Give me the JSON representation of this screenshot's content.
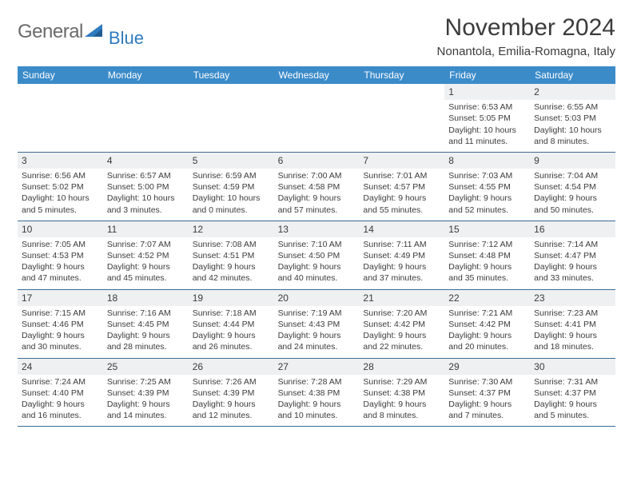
{
  "logo": {
    "text_general": "General",
    "text_blue": "Blue"
  },
  "header": {
    "month_title": "November 2024",
    "location": "Nonantola, Emilia-Romagna, Italy"
  },
  "day_names": [
    "Sunday",
    "Monday",
    "Tuesday",
    "Wednesday",
    "Thursday",
    "Friday",
    "Saturday"
  ],
  "colors": {
    "header_bar": "#3b8bc9",
    "week_border": "#3b6b95",
    "daynum_bg": "#eef0f1",
    "text": "#3b3b3b",
    "logo_gray": "#6a6a6a",
    "logo_blue": "#2f7bbf"
  },
  "weeks": [
    [
      {
        "empty": true
      },
      {
        "empty": true
      },
      {
        "empty": true
      },
      {
        "empty": true
      },
      {
        "empty": true
      },
      {
        "day": "1",
        "sunrise": "Sunrise: 6:53 AM",
        "sunset": "Sunset: 5:05 PM",
        "daylight1": "Daylight: 10 hours",
        "daylight2": "and 11 minutes."
      },
      {
        "day": "2",
        "sunrise": "Sunrise: 6:55 AM",
        "sunset": "Sunset: 5:03 PM",
        "daylight1": "Daylight: 10 hours",
        "daylight2": "and 8 minutes."
      }
    ],
    [
      {
        "day": "3",
        "sunrise": "Sunrise: 6:56 AM",
        "sunset": "Sunset: 5:02 PM",
        "daylight1": "Daylight: 10 hours",
        "daylight2": "and 5 minutes."
      },
      {
        "day": "4",
        "sunrise": "Sunrise: 6:57 AM",
        "sunset": "Sunset: 5:00 PM",
        "daylight1": "Daylight: 10 hours",
        "daylight2": "and 3 minutes."
      },
      {
        "day": "5",
        "sunrise": "Sunrise: 6:59 AM",
        "sunset": "Sunset: 4:59 PM",
        "daylight1": "Daylight: 10 hours",
        "daylight2": "and 0 minutes."
      },
      {
        "day": "6",
        "sunrise": "Sunrise: 7:00 AM",
        "sunset": "Sunset: 4:58 PM",
        "daylight1": "Daylight: 9 hours",
        "daylight2": "and 57 minutes."
      },
      {
        "day": "7",
        "sunrise": "Sunrise: 7:01 AM",
        "sunset": "Sunset: 4:57 PM",
        "daylight1": "Daylight: 9 hours",
        "daylight2": "and 55 minutes."
      },
      {
        "day": "8",
        "sunrise": "Sunrise: 7:03 AM",
        "sunset": "Sunset: 4:55 PM",
        "daylight1": "Daylight: 9 hours",
        "daylight2": "and 52 minutes."
      },
      {
        "day": "9",
        "sunrise": "Sunrise: 7:04 AM",
        "sunset": "Sunset: 4:54 PM",
        "daylight1": "Daylight: 9 hours",
        "daylight2": "and 50 minutes."
      }
    ],
    [
      {
        "day": "10",
        "sunrise": "Sunrise: 7:05 AM",
        "sunset": "Sunset: 4:53 PM",
        "daylight1": "Daylight: 9 hours",
        "daylight2": "and 47 minutes."
      },
      {
        "day": "11",
        "sunrise": "Sunrise: 7:07 AM",
        "sunset": "Sunset: 4:52 PM",
        "daylight1": "Daylight: 9 hours",
        "daylight2": "and 45 minutes."
      },
      {
        "day": "12",
        "sunrise": "Sunrise: 7:08 AM",
        "sunset": "Sunset: 4:51 PM",
        "daylight1": "Daylight: 9 hours",
        "daylight2": "and 42 minutes."
      },
      {
        "day": "13",
        "sunrise": "Sunrise: 7:10 AM",
        "sunset": "Sunset: 4:50 PM",
        "daylight1": "Daylight: 9 hours",
        "daylight2": "and 40 minutes."
      },
      {
        "day": "14",
        "sunrise": "Sunrise: 7:11 AM",
        "sunset": "Sunset: 4:49 PM",
        "daylight1": "Daylight: 9 hours",
        "daylight2": "and 37 minutes."
      },
      {
        "day": "15",
        "sunrise": "Sunrise: 7:12 AM",
        "sunset": "Sunset: 4:48 PM",
        "daylight1": "Daylight: 9 hours",
        "daylight2": "and 35 minutes."
      },
      {
        "day": "16",
        "sunrise": "Sunrise: 7:14 AM",
        "sunset": "Sunset: 4:47 PM",
        "daylight1": "Daylight: 9 hours",
        "daylight2": "and 33 minutes."
      }
    ],
    [
      {
        "day": "17",
        "sunrise": "Sunrise: 7:15 AM",
        "sunset": "Sunset: 4:46 PM",
        "daylight1": "Daylight: 9 hours",
        "daylight2": "and 30 minutes."
      },
      {
        "day": "18",
        "sunrise": "Sunrise: 7:16 AM",
        "sunset": "Sunset: 4:45 PM",
        "daylight1": "Daylight: 9 hours",
        "daylight2": "and 28 minutes."
      },
      {
        "day": "19",
        "sunrise": "Sunrise: 7:18 AM",
        "sunset": "Sunset: 4:44 PM",
        "daylight1": "Daylight: 9 hours",
        "daylight2": "and 26 minutes."
      },
      {
        "day": "20",
        "sunrise": "Sunrise: 7:19 AM",
        "sunset": "Sunset: 4:43 PM",
        "daylight1": "Daylight: 9 hours",
        "daylight2": "and 24 minutes."
      },
      {
        "day": "21",
        "sunrise": "Sunrise: 7:20 AM",
        "sunset": "Sunset: 4:42 PM",
        "daylight1": "Daylight: 9 hours",
        "daylight2": "and 22 minutes."
      },
      {
        "day": "22",
        "sunrise": "Sunrise: 7:21 AM",
        "sunset": "Sunset: 4:42 PM",
        "daylight1": "Daylight: 9 hours",
        "daylight2": "and 20 minutes."
      },
      {
        "day": "23",
        "sunrise": "Sunrise: 7:23 AM",
        "sunset": "Sunset: 4:41 PM",
        "daylight1": "Daylight: 9 hours",
        "daylight2": "and 18 minutes."
      }
    ],
    [
      {
        "day": "24",
        "sunrise": "Sunrise: 7:24 AM",
        "sunset": "Sunset: 4:40 PM",
        "daylight1": "Daylight: 9 hours",
        "daylight2": "and 16 minutes."
      },
      {
        "day": "25",
        "sunrise": "Sunrise: 7:25 AM",
        "sunset": "Sunset: 4:39 PM",
        "daylight1": "Daylight: 9 hours",
        "daylight2": "and 14 minutes."
      },
      {
        "day": "26",
        "sunrise": "Sunrise: 7:26 AM",
        "sunset": "Sunset: 4:39 PM",
        "daylight1": "Daylight: 9 hours",
        "daylight2": "and 12 minutes."
      },
      {
        "day": "27",
        "sunrise": "Sunrise: 7:28 AM",
        "sunset": "Sunset: 4:38 PM",
        "daylight1": "Daylight: 9 hours",
        "daylight2": "and 10 minutes."
      },
      {
        "day": "28",
        "sunrise": "Sunrise: 7:29 AM",
        "sunset": "Sunset: 4:38 PM",
        "daylight1": "Daylight: 9 hours",
        "daylight2": "and 8 minutes."
      },
      {
        "day": "29",
        "sunrise": "Sunrise: 7:30 AM",
        "sunset": "Sunset: 4:37 PM",
        "daylight1": "Daylight: 9 hours",
        "daylight2": "and 7 minutes."
      },
      {
        "day": "30",
        "sunrise": "Sunrise: 7:31 AM",
        "sunset": "Sunset: 4:37 PM",
        "daylight1": "Daylight: 9 hours",
        "daylight2": "and 5 minutes."
      }
    ]
  ]
}
